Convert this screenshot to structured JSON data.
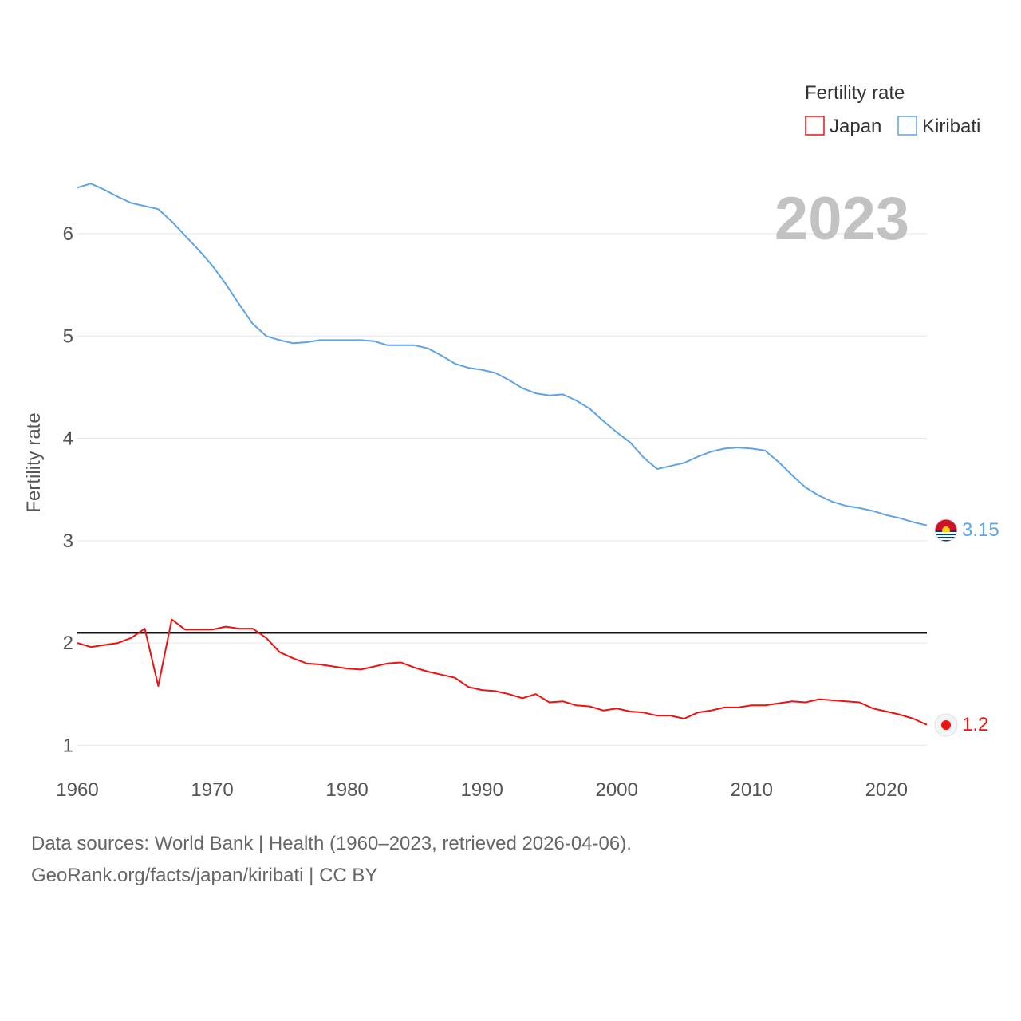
{
  "chart_data": {
    "type": "line",
    "legend_title": "Fertility rate",
    "legend_position": "top-right",
    "year_label": "2023",
    "ylabel": "Fertility rate",
    "xlabel": "",
    "xlim": [
      1960,
      2023
    ],
    "ylim": [
      0.8,
      6.85
    ],
    "x_ticks": [
      1960,
      1970,
      1980,
      1990,
      2000,
      2010,
      2020
    ],
    "y_ticks": [
      1,
      2,
      3,
      4,
      5,
      6
    ],
    "reference_line": {
      "value": 2.1
    },
    "x": [
      1960,
      1961,
      1962,
      1963,
      1964,
      1965,
      1966,
      1967,
      1968,
      1969,
      1970,
      1971,
      1972,
      1973,
      1974,
      1975,
      1976,
      1977,
      1978,
      1979,
      1980,
      1981,
      1982,
      1983,
      1984,
      1985,
      1986,
      1987,
      1988,
      1989,
      1990,
      1991,
      1992,
      1993,
      1994,
      1995,
      1996,
      1997,
      1998,
      1999,
      2000,
      2001,
      2002,
      2003,
      2004,
      2005,
      2006,
      2007,
      2008,
      2009,
      2010,
      2011,
      2012,
      2013,
      2014,
      2015,
      2016,
      2017,
      2018,
      2019,
      2020,
      2021,
      2022,
      2023
    ],
    "series": [
      {
        "name": "Japan",
        "color": "#ee1111",
        "end_label": "1.2",
        "values": [
          2.0,
          1.96,
          1.98,
          2.0,
          2.05,
          2.14,
          1.58,
          2.23,
          2.13,
          2.13,
          2.13,
          2.16,
          2.14,
          2.14,
          2.05,
          1.91,
          1.85,
          1.8,
          1.79,
          1.77,
          1.75,
          1.74,
          1.77,
          1.8,
          1.81,
          1.76,
          1.72,
          1.69,
          1.66,
          1.57,
          1.54,
          1.53,
          1.5,
          1.46,
          1.5,
          1.42,
          1.43,
          1.39,
          1.38,
          1.34,
          1.36,
          1.33,
          1.32,
          1.29,
          1.29,
          1.26,
          1.32,
          1.34,
          1.37,
          1.37,
          1.39,
          1.39,
          1.41,
          1.43,
          1.42,
          1.45,
          1.44,
          1.43,
          1.42,
          1.36,
          1.33,
          1.3,
          1.26,
          1.2
        ]
      },
      {
        "name": "Kiribati",
        "color": "#5fa3e6",
        "end_label": "3.15",
        "values": [
          6.45,
          6.49,
          6.43,
          6.36,
          6.3,
          6.27,
          6.24,
          6.12,
          5.98,
          5.84,
          5.69,
          5.51,
          5.31,
          5.12,
          5.0,
          4.96,
          4.93,
          4.94,
          4.96,
          4.96,
          4.96,
          4.96,
          4.95,
          4.91,
          4.91,
          4.91,
          4.88,
          4.81,
          4.73,
          4.69,
          4.67,
          4.64,
          4.57,
          4.49,
          4.44,
          4.42,
          4.43,
          4.37,
          4.29,
          4.17,
          4.06,
          3.96,
          3.81,
          3.7,
          3.73,
          3.76,
          3.82,
          3.87,
          3.9,
          3.91,
          3.9,
          3.88,
          3.77,
          3.64,
          3.52,
          3.44,
          3.38,
          3.34,
          3.32,
          3.29,
          3.25,
          3.22,
          3.18,
          3.15
        ]
      }
    ]
  },
  "footer": {
    "line1": "Data sources: World Bank | Health (1960–2023, retrieved 2026-04-06).",
    "line2": "GeoRank.org/facts/japan/kiribati | CC BY"
  }
}
